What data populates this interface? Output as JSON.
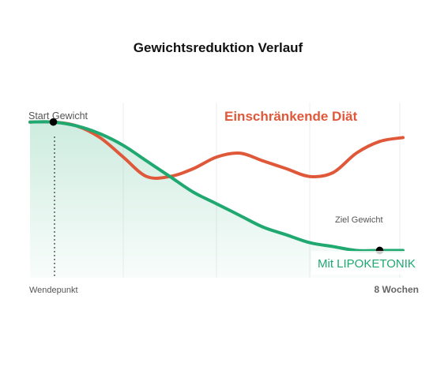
{
  "chart_data": {
    "type": "line",
    "title": "Gewichtsreduktion Verlauf",
    "x_start_label": "Wendepunkt",
    "x_end_label": "8 Wochen",
    "annotations": {
      "start": "Start Gewicht",
      "goal": "Ziel Gewicht"
    },
    "grid": true,
    "x": [
      0,
      0.5,
      1,
      1.5,
      2,
      2.5,
      3,
      3.5,
      4,
      4.5,
      5,
      5.5,
      6,
      6.5,
      7,
      7.5,
      8
    ],
    "series": [
      {
        "name": "Einschränkende Diät",
        "color": "#e0583a",
        "values": [
          100,
          100,
          99,
          96,
          91,
          86,
          86,
          88,
          91,
          92,
          90,
          88,
          86,
          87,
          92,
          95,
          96
        ]
      },
      {
        "name": "Mit LIPOKETONIK",
        "color": "#1fa870",
        "values": [
          100,
          100,
          99,
          97,
          94,
          90,
          86,
          82,
          79,
          76,
          73,
          71,
          69,
          68,
          67,
          67,
          67
        ]
      }
    ],
    "markers": [
      {
        "series": "Mit LIPOKETONIK",
        "x": 0.5,
        "label": "Start Gewicht"
      },
      {
        "series": "Mit LIPOKETONIK",
        "x": 7.5,
        "label": "Ziel Gewicht"
      }
    ]
  }
}
